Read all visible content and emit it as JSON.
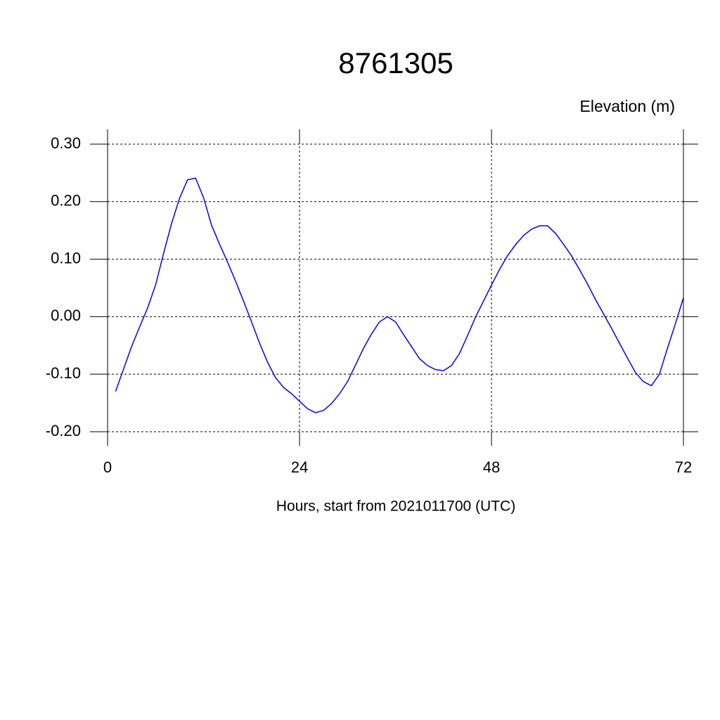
{
  "chart_data": {
    "type": "line",
    "title": "8761305",
    "y_axis_label": "Elevation (m)",
    "x_axis_label": "Hours, start from 2021011700 (UTC)",
    "x": [
      1,
      2,
      3,
      4,
      5,
      6,
      7,
      8,
      9,
      10,
      11,
      12,
      13,
      14,
      15,
      16,
      17,
      18,
      19,
      20,
      21,
      22,
      23,
      24,
      25,
      26,
      27,
      28,
      29,
      30,
      31,
      32,
      33,
      34,
      35,
      36,
      37,
      38,
      39,
      40,
      41,
      42,
      43,
      44,
      45,
      46,
      47,
      48,
      49,
      50,
      51,
      52,
      53,
      54,
      55,
      56,
      57,
      58,
      59,
      60,
      61,
      62,
      63,
      64,
      65,
      66,
      67,
      68,
      69,
      70,
      71,
      72
    ],
    "series": [
      {
        "color": "#0000ff",
        "values": [
          -0.13,
          -0.091,
          -0.052,
          -0.018,
          0.015,
          0.055,
          0.11,
          0.162,
          0.206,
          0.238,
          0.241,
          0.207,
          0.159,
          0.126,
          0.095,
          0.062,
          0.027,
          -0.009,
          -0.046,
          -0.079,
          -0.106,
          -0.123,
          -0.134,
          -0.147,
          -0.16,
          -0.167,
          -0.163,
          -0.151,
          -0.134,
          -0.113,
          -0.084,
          -0.055,
          -0.03,
          -0.009,
          0.0,
          -0.009,
          -0.031,
          -0.052,
          -0.073,
          -0.085,
          -0.092,
          -0.094,
          -0.085,
          -0.064,
          -0.033,
          -0.001,
          0.027,
          0.055,
          0.082,
          0.106,
          0.125,
          0.141,
          0.152,
          0.158,
          0.158,
          0.145,
          0.126,
          0.106,
          0.082,
          0.057,
          0.03,
          0.005,
          -0.02,
          -0.046,
          -0.072,
          -0.097,
          -0.113,
          -0.12,
          -0.1,
          -0.055,
          -0.012,
          0.033
        ]
      }
    ],
    "xlim": [
      0,
      72
    ],
    "xticks": [
      0,
      24,
      48,
      72
    ],
    "ylim": [
      -0.2245,
      0.3257
    ],
    "yticks": [
      {
        "value": 0.3,
        "label": "0.30"
      },
      {
        "value": 0.2,
        "label": "0.20"
      },
      {
        "value": 0.1,
        "label": "0.10"
      },
      {
        "value": 0,
        "label": "0.00"
      },
      {
        "value": -0.1,
        "label": "-0.10"
      },
      {
        "value": -0.2,
        "label": "-0.20"
      }
    ],
    "grid": true
  }
}
